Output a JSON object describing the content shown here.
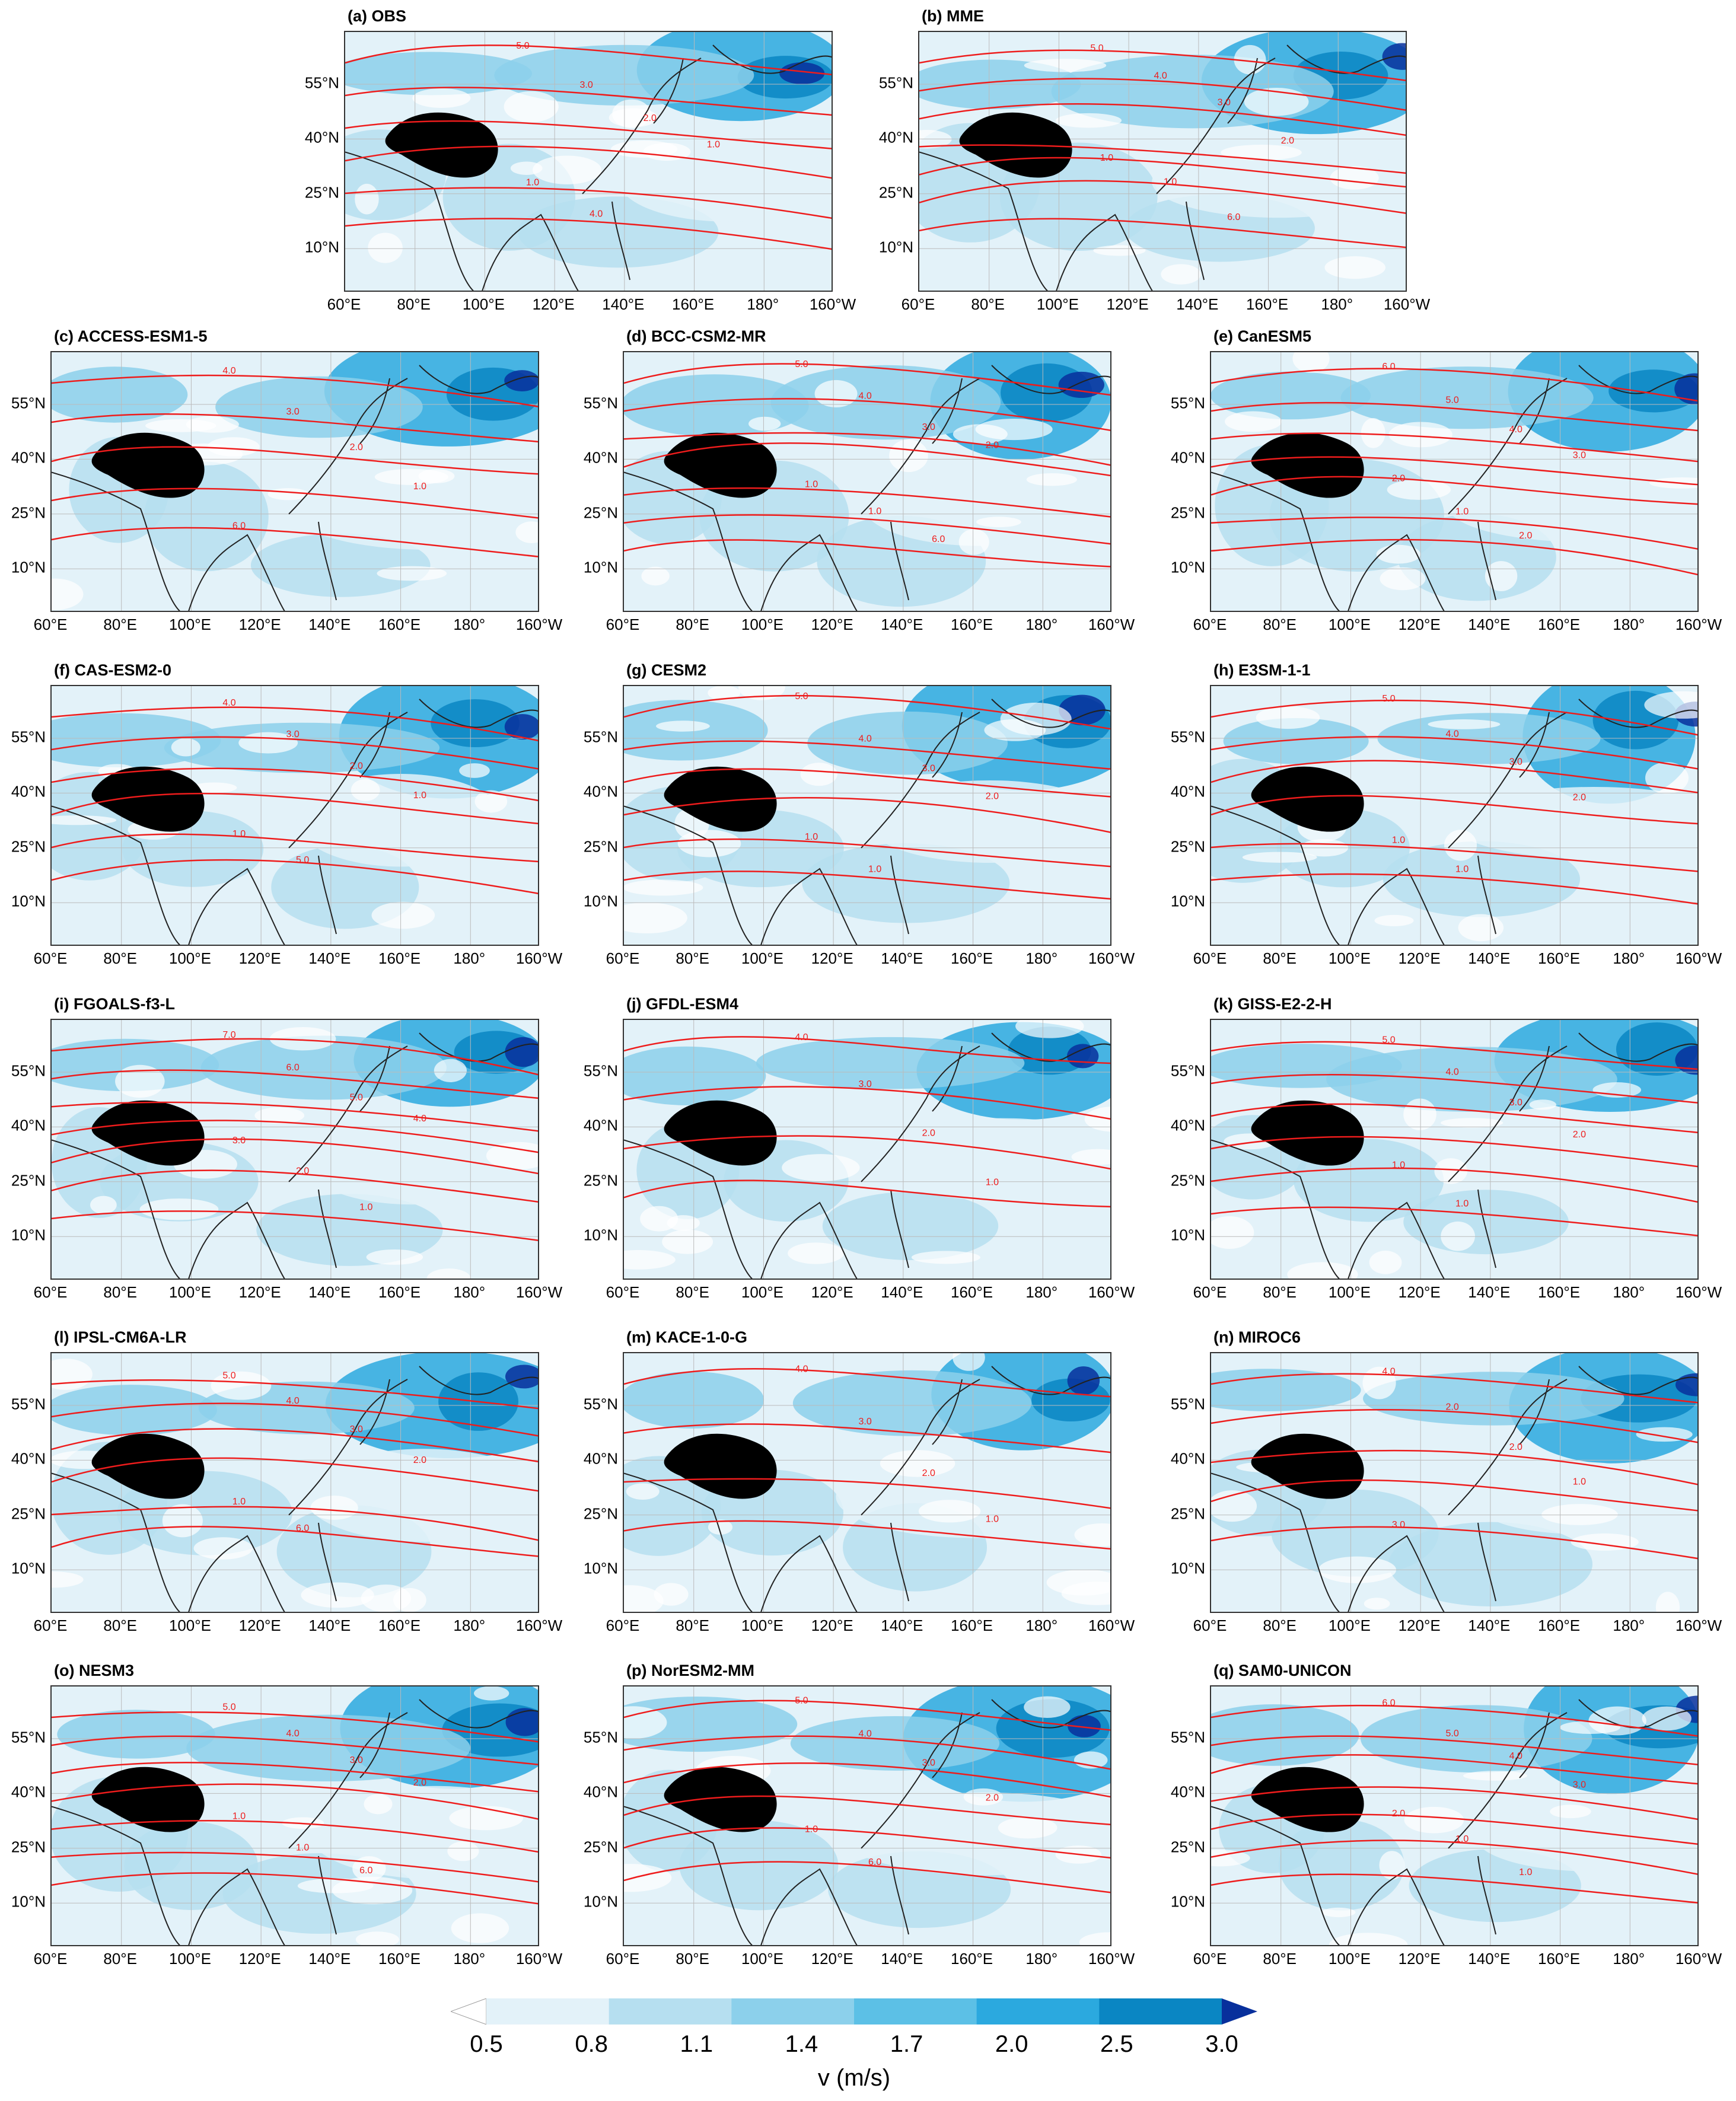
{
  "panels": [
    {
      "id": "a",
      "title": "(a) OBS",
      "contours": [
        "5.0",
        "3.0",
        "2.0",
        "1.0",
        "1.0",
        "4.0"
      ]
    },
    {
      "id": "b",
      "title": "(b) MME",
      "contours": [
        "5.0",
        "4.0",
        "3.0",
        "2.0",
        "1.0",
        "1.0",
        "6.0"
      ]
    },
    {
      "id": "c",
      "title": "(c) ACCESS-ESM1-5",
      "contours": [
        "4.0",
        "3.0",
        "2.0",
        "1.0",
        "6.0"
      ]
    },
    {
      "id": "d",
      "title": "(d) BCC-CSM2-MR",
      "contours": [
        "5.0",
        "4.0",
        "3.0",
        "2.0",
        "1.0",
        "1.0",
        "6.0"
      ]
    },
    {
      "id": "e",
      "title": "(e) CanESM5",
      "contours": [
        "6.0",
        "5.0",
        "4.0",
        "3.0",
        "2.0",
        "1.0",
        "2.0"
      ]
    },
    {
      "id": "f",
      "title": "(f) CAS-ESM2-0",
      "contours": [
        "4.0",
        "3.0",
        "2.0",
        "1.0",
        "1.0",
        "5.0"
      ]
    },
    {
      "id": "g",
      "title": "(g) CESM2",
      "contours": [
        "5.0",
        "4.0",
        "3.0",
        "2.0",
        "1.0",
        "1.0"
      ]
    },
    {
      "id": "h",
      "title": "(h) E3SM-1-1",
      "contours": [
        "5.0",
        "4.0",
        "3.0",
        "2.0",
        "1.0",
        "1.0"
      ]
    },
    {
      "id": "i",
      "title": "(i) FGOALS-f3-L",
      "contours": [
        "7.0",
        "6.0",
        "5.0",
        "4.0",
        "3.0",
        "2.0",
        "1.0"
      ]
    },
    {
      "id": "j",
      "title": "(j) GFDL-ESM4",
      "contours": [
        "4.0",
        "3.0",
        "2.0",
        "1.0"
      ]
    },
    {
      "id": "k",
      "title": "(k) GISS-E2-2-H",
      "contours": [
        "5.0",
        "4.0",
        "3.0",
        "2.0",
        "1.0",
        "1.0"
      ]
    },
    {
      "id": "l",
      "title": "(l) IPSL-CM6A-LR",
      "contours": [
        "5.0",
        "4.0",
        "3.0",
        "2.0",
        "1.0",
        "6.0"
      ]
    },
    {
      "id": "m",
      "title": "(m) KACE-1-0-G",
      "contours": [
        "4.0",
        "3.0",
        "2.0",
        "1.0"
      ]
    },
    {
      "id": "n",
      "title": "(n) MIROC6",
      "contours": [
        "4.0",
        "2.0",
        "2.0",
        "1.0",
        "3.0"
      ]
    },
    {
      "id": "o",
      "title": "(o) NESM3",
      "contours": [
        "5.0",
        "4.0",
        "3.0",
        "2.0",
        "1.0",
        "1.0",
        "6.0"
      ]
    },
    {
      "id": "p",
      "title": "(p) NorESM2-MM",
      "contours": [
        "5.0",
        "4.0",
        "3.0",
        "2.0",
        "1.0",
        "6.0"
      ]
    },
    {
      "id": "q",
      "title": "(q) SAM0-UNICON",
      "contours": [
        "6.0",
        "5.0",
        "4.0",
        "3.0",
        "2.0",
        "1.0",
        "1.0"
      ]
    }
  ],
  "axes": {
    "x_ticks": [
      "60°E",
      "80°E",
      "100°E",
      "120°E",
      "140°E",
      "160°E",
      "180°",
      "160°W"
    ],
    "y_ticks": [
      "55°N",
      "40°N",
      "25°N",
      "10°N"
    ]
  },
  "colorbar": {
    "levels": [
      "0.5",
      "0.8",
      "1.1",
      "1.4",
      "1.7",
      "2.0",
      "2.5",
      "3.0"
    ],
    "colors": [
      "#ffffff",
      "#e3f2f9",
      "#b6dff0",
      "#8cd0eb",
      "#5cc0e6",
      "#2ba9df",
      "#0a86c3",
      "#08309c"
    ],
    "label": "v (m/s)"
  },
  "style": {
    "contour_color": "#ee1c1c",
    "plateau_color": "#000000",
    "coast_color": "#222222"
  }
}
